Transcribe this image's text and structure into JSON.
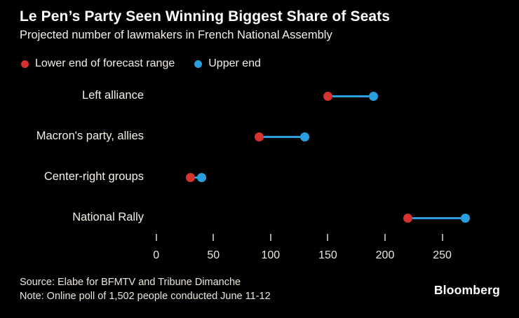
{
  "header": {
    "title": "Le Pen’s Party Seen Winning Biggest Share of Seats",
    "subtitle": "Projected number of lawmakers in French National Assembly"
  },
  "legend": {
    "items": [
      {
        "label": "Lower end of forecast range",
        "color": "#d73230"
      },
      {
        "label": "Upper end",
        "color": "#2a9ddf"
      }
    ]
  },
  "chart_data": {
    "type": "dumbbell",
    "orientation": "horizontal",
    "title": "Le Pen’s Party Seen Winning Biggest Share of Seats",
    "subtitle": "Projected number of lawmakers in French National Assembly",
    "categories": [
      "Left alliance",
      "Macron's party, allies",
      "Center-right groups",
      "National Rally"
    ],
    "series": [
      {
        "name": "Lower end of forecast range",
        "color": "#d73230",
        "values": [
          150,
          90,
          30,
          220
        ]
      },
      {
        "name": "Upper end",
        "color": "#2a9ddf",
        "values": [
          190,
          130,
          40,
          270
        ]
      }
    ],
    "x_ticks": [
      0,
      50,
      100,
      150,
      200,
      250
    ],
    "xlim": [
      0,
      293
    ],
    "xlabel": "",
    "ylabel": "",
    "grid": false,
    "legend_position": "top",
    "connector_color": "#2a9ddf"
  },
  "footer": {
    "source": "Source: Elabe for BFMTV and Tribune Dimanche",
    "note": "Note: Online poll of 1,502 people conducted June 11-12",
    "brand": "Bloomberg"
  },
  "colors": {
    "background": "#000000",
    "title_text": "#ffffff",
    "body_text": "#f4f0e5",
    "axis_text": "#ece7da",
    "tick_mark": "#a9a49a",
    "lower_dot": "#d73230",
    "upper_dot": "#2a9ddf"
  }
}
